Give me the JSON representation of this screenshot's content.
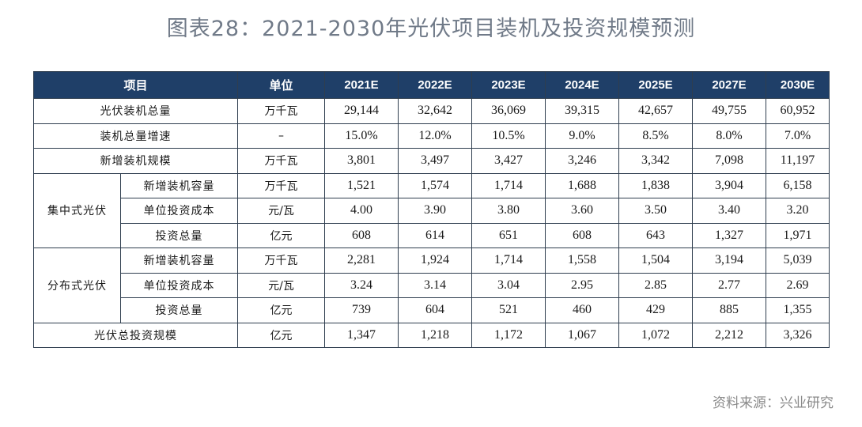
{
  "title": "图表28：2021-2030年光伏项目装机及投资规模预测",
  "source": "资料来源：兴业研究",
  "table": {
    "headers": [
      "项目",
      "单位",
      "2021E",
      "2022E",
      "2023E",
      "2024E",
      "2025E",
      "2027E",
      "2030E"
    ],
    "groups": {
      "centralized": "集中式光伏",
      "distributed": "分布式光伏"
    },
    "rows": [
      {
        "label": "光伏装机总量",
        "unit": "万千瓦",
        "values": [
          "29,144",
          "32,642",
          "36,069",
          "39,315",
          "42,657",
          "49,755",
          "60,952"
        ]
      },
      {
        "label": "装机总量增速",
        "unit": "–",
        "values": [
          "15.0%",
          "12.0%",
          "10.5%",
          "9.0%",
          "8.5%",
          "8.0%",
          "7.0%"
        ]
      },
      {
        "label": "新增装机规模",
        "unit": "万千瓦",
        "values": [
          "3,801",
          "3,497",
          "3,427",
          "3,246",
          "3,342",
          "7,098",
          "11,197"
        ]
      },
      {
        "label": "新增装机容量",
        "unit": "万千瓦",
        "values": [
          "1,521",
          "1,574",
          "1,714",
          "1,688",
          "1,838",
          "3,904",
          "6,158"
        ]
      },
      {
        "label": "单位投资成本",
        "unit": "元/瓦",
        "values": [
          "4.00",
          "3.90",
          "3.80",
          "3.60",
          "3.50",
          "3.40",
          "3.20"
        ]
      },
      {
        "label": "投资总量",
        "unit": "亿元",
        "values": [
          "608",
          "614",
          "651",
          "608",
          "643",
          "1,327",
          "1,971"
        ]
      },
      {
        "label": "新增装机容量",
        "unit": "万千瓦",
        "values": [
          "2,281",
          "1,924",
          "1,714",
          "1,558",
          "1,504",
          "3,194",
          "5,039"
        ]
      },
      {
        "label": "单位投资成本",
        "unit": "元/瓦",
        "values": [
          "3.24",
          "3.14",
          "3.04",
          "2.95",
          "2.85",
          "2.77",
          "2.69"
        ]
      },
      {
        "label": "投资总量",
        "unit": "亿元",
        "values": [
          "739",
          "604",
          "521",
          "460",
          "429",
          "885",
          "1,355"
        ]
      },
      {
        "label": "光伏总投资规模",
        "unit": "亿元",
        "values": [
          "1,347",
          "1,218",
          "1,172",
          "1,067",
          "1,072",
          "2,212",
          "3,326"
        ]
      }
    ]
  }
}
